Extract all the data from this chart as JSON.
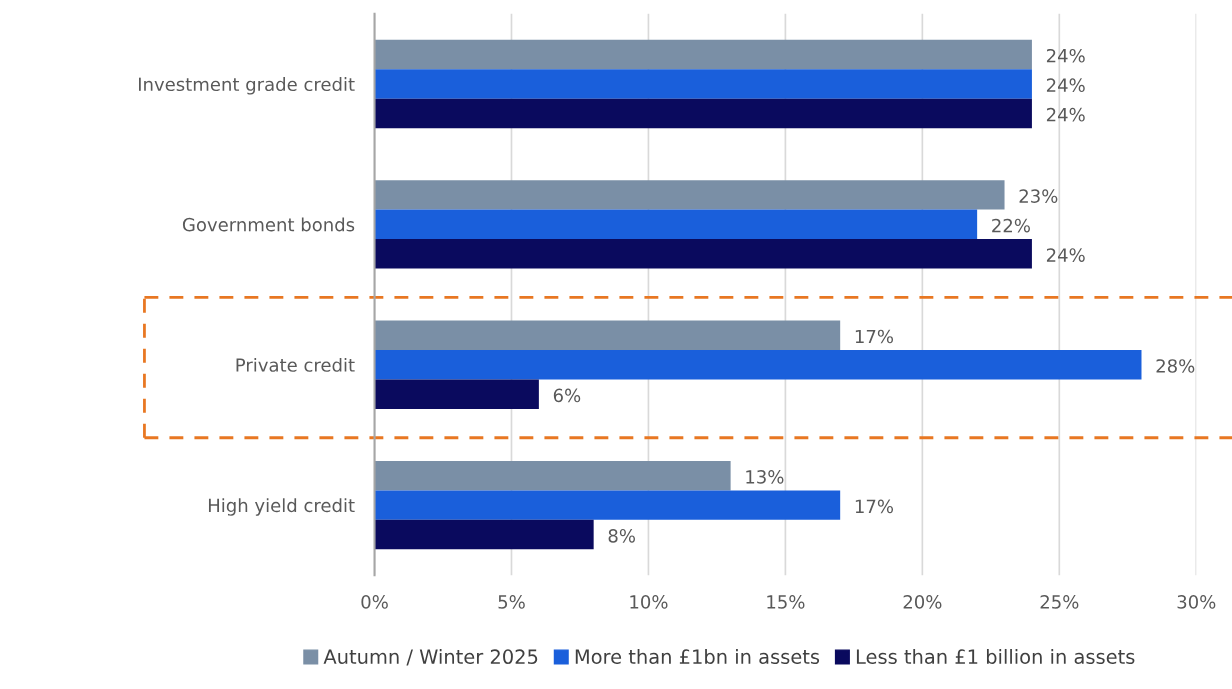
{
  "chart_data": {
    "type": "bar",
    "orientation": "horizontal",
    "categories": [
      "Investment grade credit",
      "Government bonds",
      "Private credit",
      "High yield credit"
    ],
    "series": [
      {
        "name": "Autumn / Winter 2025",
        "color": "#7a8fa6",
        "values": [
          24,
          23,
          17,
          13
        ],
        "value_labels": [
          "24%",
          "23%",
          "17%",
          "13%"
        ]
      },
      {
        "name": "More than £1bn in assets",
        "color": "#1a5fdb",
        "values": [
          24,
          22,
          28,
          17
        ],
        "value_labels": [
          "24%",
          "22%",
          "28%",
          "17%"
        ]
      },
      {
        "name": "Less than £1 billion in assets",
        "color": "#0a0a5e",
        "values": [
          24,
          24,
          6,
          8
        ],
        "value_labels": [
          "24%",
          "24%",
          "6%",
          "8%"
        ]
      }
    ],
    "xlim": [
      0,
      30
    ],
    "xticks": [
      {
        "value": 0,
        "label": "0%"
      },
      {
        "value": 5,
        "label": "5%"
      },
      {
        "value": 10,
        "label": "10%"
      },
      {
        "value": 15,
        "label": "15%"
      },
      {
        "value": 20,
        "label": "20%"
      },
      {
        "value": 25,
        "label": "25%"
      },
      {
        "value": 30,
        "label": "30%"
      }
    ],
    "grid": "x",
    "legend": "bottom"
  }
}
